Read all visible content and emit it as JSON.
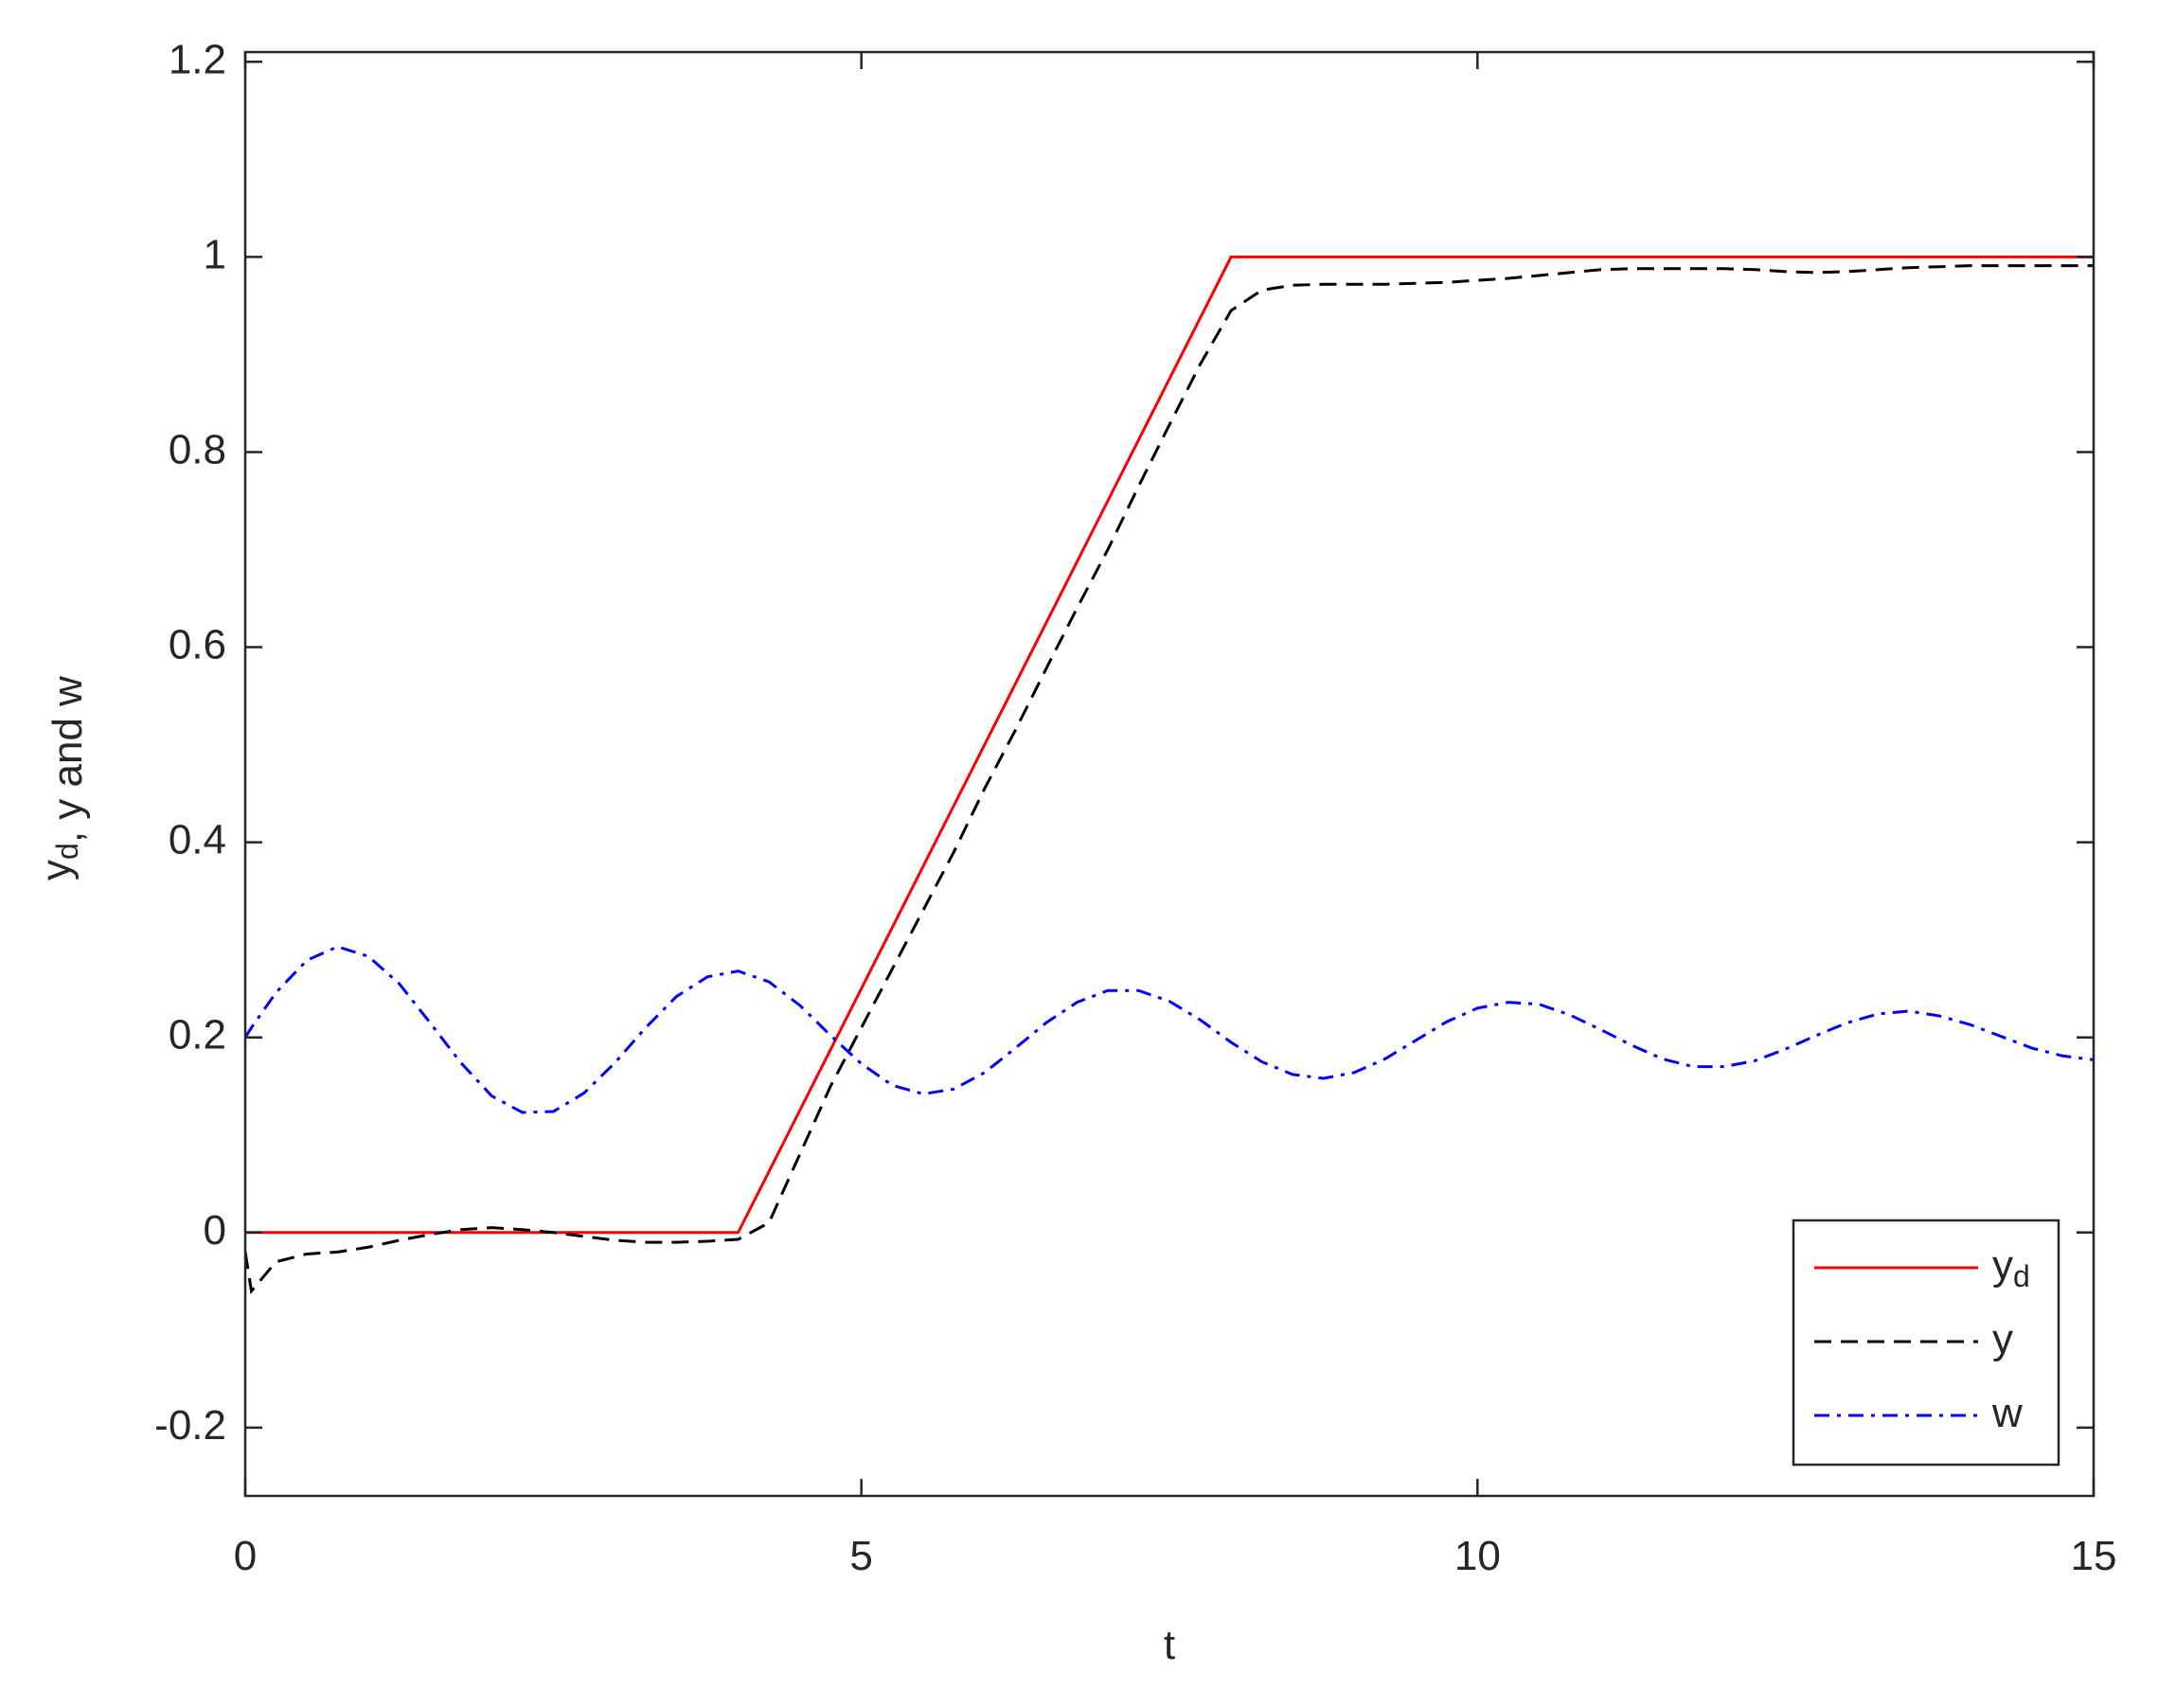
{
  "chart_data": {
    "type": "line",
    "xlabel": "t",
    "ylabel": "y_d, y and w",
    "xlim": [
      0,
      15
    ],
    "ylim": [
      -0.27,
      1.21
    ],
    "xticks": [
      0,
      5,
      10,
      15
    ],
    "yticks": [
      -0.2,
      0,
      0.2,
      0.4,
      0.6,
      0.8,
      1,
      1.2
    ],
    "legend": "lower right",
    "x": [
      0,
      0.05,
      0.25,
      0.5,
      0.75,
      1,
      1.25,
      1.5,
      1.75,
      2,
      2.25,
      2.5,
      2.75,
      3,
      3.25,
      3.5,
      3.75,
      4,
      4.25,
      4.5,
      4.75,
      5,
      5.25,
      5.5,
      5.75,
      6,
      6.25,
      6.5,
      6.75,
      7,
      7.25,
      7.5,
      7.75,
      8,
      8.25,
      8.5,
      8.75,
      9,
      9.25,
      9.5,
      9.75,
      10,
      10.25,
      10.5,
      10.75,
      11,
      11.25,
      11.5,
      11.75,
      12,
      12.25,
      12.5,
      12.75,
      13,
      13.25,
      13.5,
      13.75,
      14,
      14.25,
      14.5,
      14.75,
      15
    ],
    "series": [
      {
        "name": "y_d",
        "color": "#ff0000",
        "dash": "solid",
        "values": [
          0,
          0,
          0,
          0,
          0,
          0,
          0,
          0,
          0,
          0,
          0,
          0,
          0,
          0,
          0,
          0,
          0,
          0,
          0.0625,
          0.125,
          0.1875,
          0.25,
          0.3125,
          0.375,
          0.4375,
          0.5,
          0.5625,
          0.625,
          0.6875,
          0.75,
          0.8125,
          0.875,
          0.9375,
          1,
          1,
          1,
          1,
          1,
          1,
          1,
          1,
          1,
          1,
          1,
          1,
          1,
          1,
          1,
          1,
          1,
          1,
          1,
          1,
          1,
          1,
          1,
          1,
          1,
          1,
          1,
          1,
          1
        ]
      },
      {
        "name": "y",
        "color": "#000000",
        "dash": "dash",
        "values": [
          -0.02,
          -0.06,
          -0.03,
          -0.022,
          -0.02,
          -0.015,
          -0.008,
          -0.002,
          0.003,
          0.005,
          0.003,
          0,
          -0.004,
          -0.008,
          -0.01,
          -0.01,
          -0.009,
          -0.007,
          0.01,
          0.08,
          0.15,
          0.21,
          0.27,
          0.33,
          0.39,
          0.455,
          0.515,
          0.578,
          0.64,
          0.7,
          0.765,
          0.828,
          0.89,
          0.945,
          0.966,
          0.971,
          0.972,
          0.972,
          0.972,
          0.973,
          0.974,
          0.976,
          0.978,
          0.981,
          0.984,
          0.987,
          0.988,
          0.988,
          0.988,
          0.988,
          0.987,
          0.985,
          0.984,
          0.985,
          0.987,
          0.989,
          0.99,
          0.991,
          0.991,
          0.991,
          0.991,
          0.991
        ]
      },
      {
        "name": "w",
        "color": "#0000ff",
        "dash": "dashdot",
        "values": [
          0.2,
          0.21,
          0.246,
          0.279,
          0.293,
          0.283,
          0.255,
          0.215,
          0.174,
          0.14,
          0.123,
          0.124,
          0.143,
          0.174,
          0.21,
          0.242,
          0.262,
          0.268,
          0.257,
          0.233,
          0.202,
          0.173,
          0.151,
          0.142,
          0.147,
          0.164,
          0.189,
          0.215,
          0.236,
          0.248,
          0.248,
          0.237,
          0.218,
          0.195,
          0.175,
          0.162,
          0.158,
          0.164,
          0.178,
          0.197,
          0.216,
          0.23,
          0.236,
          0.234,
          0.223,
          0.208,
          0.192,
          0.178,
          0.17,
          0.17,
          0.176,
          0.188,
          0.202,
          0.215,
          0.224,
          0.227,
          0.222,
          0.213,
          0.201,
          0.189,
          0.181,
          0.177
        ]
      }
    ]
  }
}
